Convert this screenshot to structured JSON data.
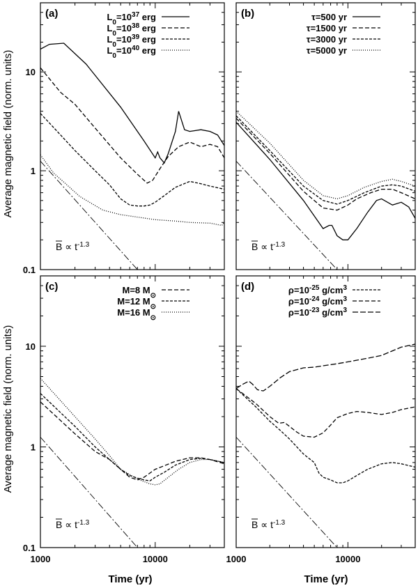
{
  "figure": {
    "ylabel": "Average magnetic field (norm. units)",
    "xlabel": "Time (yr)",
    "x_ticks": [
      "1000",
      "10000"
    ],
    "y_ticks": [
      "0.1",
      "1",
      "10"
    ]
  },
  "chart_data": [
    {
      "type": "line",
      "panel": "(a)",
      "xscale": "log",
      "yscale": "log",
      "xlim": [
        1000,
        40000
      ],
      "ylim": [
        0.1,
        50
      ],
      "annotation": {
        "bar": "B",
        "text": "∝ t",
        "exp": "-1.3"
      },
      "series": [
        {
          "name": "L0=10^37 erg",
          "label": [
            "L",
            "0",
            "=10",
            "37",
            " erg"
          ],
          "dash": "solid",
          "x": [
            1000,
            1200,
            1600,
            2500,
            5000,
            8000,
            10000,
            10500,
            11000,
            12000,
            13000,
            15000,
            16000,
            17000,
            18000,
            20000,
            25000,
            30000,
            35000,
            40000
          ],
          "y": [
            17,
            19,
            19.5,
            12,
            4.4,
            2.0,
            1.35,
            1.55,
            1.35,
            1.2,
            1.5,
            2.5,
            4.0,
            3.2,
            2.6,
            2.5,
            2.6,
            2.5,
            2.3,
            1.8
          ]
        },
        {
          "name": "L0=10^38 erg",
          "label": [
            "L",
            "0",
            "=10",
            "38",
            " erg"
          ],
          "dash": "6,3",
          "x": [
            1000,
            1500,
            2000,
            3000,
            5000,
            7000,
            8500,
            9500,
            11000,
            13000,
            16000,
            20000,
            25000,
            30000,
            35000,
            40000
          ],
          "y": [
            11,
            6.2,
            4.7,
            2.7,
            1.35,
            0.92,
            0.75,
            0.8,
            1.05,
            1.4,
            1.75,
            1.95,
            1.75,
            1.85,
            1.75,
            1.35
          ]
        },
        {
          "name": "L0=10^39 erg",
          "label": [
            "L",
            "0",
            "=10",
            "39",
            " erg"
          ],
          "dash": "4,2",
          "x": [
            1000,
            1500,
            2000,
            3000,
            4000,
            5000,
            6000,
            7000,
            8000,
            9000,
            10000,
            12000,
            15000,
            20000,
            25000,
            30000,
            40000
          ],
          "y": [
            3.8,
            2.3,
            1.6,
            1.0,
            0.72,
            0.52,
            0.45,
            0.44,
            0.44,
            0.45,
            0.48,
            0.56,
            0.68,
            0.78,
            0.74,
            0.7,
            0.65
          ]
        },
        {
          "name": "L0=10^40 erg",
          "label": [
            "L",
            "0",
            "=10",
            "40",
            " erg"
          ],
          "dash": "1,2",
          "x": [
            1000,
            1300,
            1700,
            2200,
            2600,
            3500,
            5000,
            7000,
            10000,
            15000,
            20000,
            30000,
            38000,
            40000
          ],
          "y": [
            1.45,
            0.95,
            0.72,
            0.55,
            0.49,
            0.4,
            0.36,
            0.34,
            0.32,
            0.31,
            0.3,
            0.295,
            0.28,
            0.3
          ]
        },
        {
          "name": "reference",
          "dash": "10,3,2,3",
          "legend": false,
          "x": [
            1000,
            7000
          ],
          "y": [
            1.25,
            0.1
          ]
        }
      ]
    },
    {
      "type": "line",
      "panel": "(b)",
      "xscale": "log",
      "yscale": "log",
      "xlim": [
        1000,
        40000
      ],
      "ylim": [
        0.1,
        50
      ],
      "annotation": {
        "bar": "B",
        "text": "∝ t",
        "exp": "-1.3"
      },
      "series": [
        {
          "name": "τ=500 yr",
          "label": [
            "τ=500 yr"
          ],
          "dash": "solid",
          "x": [
            1000,
            2000,
            4000,
            6000,
            6800,
            7200,
            8000,
            9000,
            10000,
            12000,
            15000,
            18000,
            20000,
            25000,
            30000,
            35000,
            40000
          ],
          "y": [
            3.1,
            1.3,
            0.5,
            0.26,
            0.28,
            0.28,
            0.22,
            0.2,
            0.2,
            0.26,
            0.38,
            0.5,
            0.52,
            0.45,
            0.48,
            0.43,
            0.33
          ]
        },
        {
          "name": "τ=1500 yr",
          "label": [
            "τ=1500 yr"
          ],
          "dash": "6,3",
          "x": [
            1000,
            2000,
            4000,
            6000,
            8000,
            10000,
            12000,
            16000,
            20000,
            25000,
            30000,
            40000
          ],
          "y": [
            3.4,
            1.5,
            0.62,
            0.42,
            0.4,
            0.45,
            0.52,
            0.6,
            0.65,
            0.65,
            0.6,
            0.52
          ]
        },
        {
          "name": "τ=3000 yr",
          "label": [
            "τ=3000 yr"
          ],
          "dash": "4,2",
          "x": [
            1000,
            2000,
            4000,
            6000,
            8000,
            10000,
            14000,
            20000,
            25000,
            30000,
            40000
          ],
          "y": [
            3.6,
            1.6,
            0.7,
            0.5,
            0.46,
            0.5,
            0.6,
            0.7,
            0.72,
            0.7,
            0.62
          ]
        },
        {
          "name": "τ=5000 yr",
          "label": [
            "τ=5000 yr"
          ],
          "dash": "1,2",
          "x": [
            1000,
            2000,
            4000,
            6000,
            8000,
            10000,
            14000,
            20000,
            25000,
            30000,
            40000
          ],
          "y": [
            4.0,
            1.9,
            0.8,
            0.56,
            0.52,
            0.56,
            0.68,
            0.78,
            0.82,
            0.78,
            0.7
          ]
        },
        {
          "name": "reference",
          "dash": "10,3,2,3",
          "legend": false,
          "x": [
            1000,
            8000
          ],
          "y": [
            1.25,
            0.1
          ]
        }
      ]
    },
    {
      "type": "line",
      "panel": "(c)",
      "xscale": "log",
      "yscale": "log",
      "xlim": [
        1000,
        40000
      ],
      "ylim": [
        0.1,
        50
      ],
      "annotation": {
        "bar": "B",
        "text": "∝ t",
        "exp": "-1.3"
      },
      "series": [
        {
          "name": "M=8 M⊙",
          "label": [
            "M=8 M",
            "⊙",
            ""
          ],
          "dash": "6,3",
          "x": [
            1000,
            2000,
            3000,
            4000,
            5000,
            6000,
            7000,
            8000,
            10000,
            12000,
            15000,
            20000,
            25000,
            30000,
            40000
          ],
          "y": [
            2.8,
            1.35,
            0.9,
            0.75,
            0.6,
            0.5,
            0.47,
            0.5,
            0.6,
            0.65,
            0.72,
            0.78,
            0.78,
            0.75,
            0.68
          ]
        },
        {
          "name": "M=12 M⊙",
          "label": [
            "M=12 M",
            "⊙",
            ""
          ],
          "dash": "4,2",
          "x": [
            1000,
            2000,
            3000,
            4000,
            5000,
            6000,
            7000,
            8000,
            9000,
            10000,
            12000,
            15000,
            20000,
            25000,
            30000,
            40000
          ],
          "y": [
            3.4,
            1.6,
            1.0,
            0.75,
            0.6,
            0.52,
            0.49,
            0.47,
            0.46,
            0.5,
            0.56,
            0.66,
            0.75,
            0.77,
            0.75,
            0.7
          ]
        },
        {
          "name": "M=16 M⊙",
          "label": [
            "M=16 M",
            "⊙",
            ""
          ],
          "dash": "1,2",
          "x": [
            1000,
            2000,
            3000,
            4000,
            5000,
            7000,
            9000,
            10000,
            11000,
            13000,
            16000,
            20000,
            25000,
            30000,
            40000
          ],
          "y": [
            4.8,
            2.0,
            1.2,
            0.82,
            0.6,
            0.48,
            0.43,
            0.42,
            0.43,
            0.5,
            0.6,
            0.7,
            0.75,
            0.75,
            0.7
          ]
        },
        {
          "name": "reference",
          "dash": "10,3,2,3",
          "legend": false,
          "x": [
            1000,
            7000
          ],
          "y": [
            1.25,
            0.1
          ]
        }
      ]
    },
    {
      "type": "line",
      "panel": "(d)",
      "xscale": "log",
      "yscale": "log",
      "xlim": [
        1000,
        40000
      ],
      "ylim": [
        0.1,
        50
      ],
      "annotation": {
        "bar": "B",
        "text": "∝ t",
        "exp": "-1.3"
      },
      "series": [
        {
          "name": "ρ=10^-25 g/cm^3",
          "label": [
            "ρ=10",
            "-25",
            " g/cm",
            "3",
            ""
          ],
          "dash": "4,2",
          "x": [
            1000,
            1500,
            2000,
            2500,
            3000,
            4000,
            5000,
            5500,
            6000,
            7000,
            8000,
            9000,
            10000,
            12000,
            15000,
            20000,
            25000,
            30000,
            40000
          ],
          "y": [
            3.8,
            2.5,
            1.8,
            1.45,
            1.2,
            0.85,
            0.7,
            0.55,
            0.5,
            0.47,
            0.44,
            0.44,
            0.46,
            0.52,
            0.6,
            0.68,
            0.7,
            0.68,
            0.63
          ]
        },
        {
          "name": "ρ=10^-24 g/cm^3",
          "label": [
            "ρ=10",
            "-24",
            " g/cm",
            "3",
            ""
          ],
          "dash": "6,3",
          "x": [
            1000,
            1500,
            2000,
            2400,
            2700,
            3000,
            3500,
            4000,
            5000,
            6000,
            7000,
            8000,
            10000,
            12000,
            15000,
            20000,
            25000,
            30000,
            40000
          ],
          "y": [
            3.8,
            2.7,
            2.0,
            1.72,
            1.75,
            1.6,
            1.4,
            1.28,
            1.25,
            1.38,
            1.65,
            1.95,
            2.15,
            2.25,
            2.2,
            2.1,
            2.2,
            2.35,
            2.5
          ]
        },
        {
          "name": "ρ=10^-23 g/cm^3",
          "label": [
            "ρ=10",
            "-23",
            " g/cm",
            "3",
            ""
          ],
          "dash": "8,3",
          "x": [
            1000,
            1150,
            1300,
            1400,
            1550,
            1750,
            2000,
            2500,
            3000,
            4000,
            5000,
            6000,
            8000,
            10000,
            15000,
            20000,
            25000,
            30000,
            40000
          ],
          "y": [
            3.8,
            4.2,
            4.5,
            4.2,
            3.7,
            3.6,
            4.0,
            4.9,
            5.6,
            6.1,
            6.2,
            6.4,
            6.7,
            7.0,
            7.6,
            8.1,
            9.0,
            9.8,
            10.5
          ]
        },
        {
          "name": "reference",
          "dash": "10,3,2,3",
          "legend": false,
          "x": [
            1000,
            8000
          ],
          "y": [
            1.25,
            0.1
          ]
        }
      ]
    }
  ]
}
